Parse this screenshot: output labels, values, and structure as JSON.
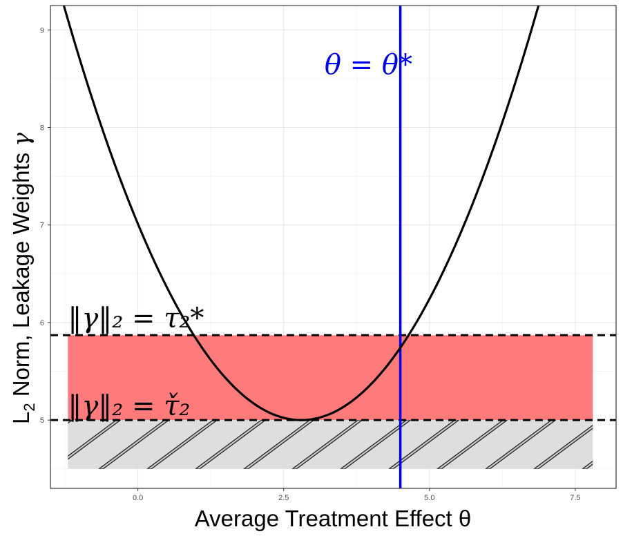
{
  "chart_data": {
    "type": "line",
    "title": "",
    "xlabel": "Average Treatment Effect θ",
    "ylabel": "L₂ Norm, Leakage Weights γ",
    "ylabel_parts": {
      "prefix": "L",
      "subscript": "2",
      "suffix": " Norm, Leakage Weights ",
      "symbol": "γ"
    },
    "xlim": [
      -1.5,
      8.2
    ],
    "ylim": [
      4.3,
      9.25
    ],
    "x_ticks": [
      0.0,
      2.5,
      5.0,
      7.5
    ],
    "x_tick_labels": [
      "0.0",
      "2.5",
      "5.0",
      "7.5"
    ],
    "y_ticks": [
      5,
      6,
      7,
      8,
      9
    ],
    "y_tick_labels": [
      "5",
      "6",
      "7",
      "8",
      "9"
    ],
    "grid": true,
    "series": [
      {
        "name": "L2 norm curve",
        "color": "#000000",
        "function": {
          "kind": "quadratic",
          "vertex_x": 2.8,
          "vertex_y": 5.0,
          "a": 0.2566
        },
        "x_range": [
          -1.3,
          7.0
        ]
      }
    ],
    "vlines": [
      {
        "x": 4.5,
        "color": "#0000ee",
        "label": "θ = θ*"
      }
    ],
    "hlines": [
      {
        "y": 5.87,
        "style": "dashed",
        "color": "#000000",
        "label": "‖γ‖₂ = τ₂*"
      },
      {
        "y": 5.0,
        "style": "dashed",
        "color": "#000000",
        "label": "‖γ‖₂ = τ̌₂"
      }
    ],
    "bands": [
      {
        "name": "feasible region",
        "x_range": [
          -1.2,
          7.8
        ],
        "y_range": [
          5.0,
          5.87
        ],
        "color": "#ff7b7b"
      },
      {
        "name": "infeasible region",
        "x_range": [
          -1.2,
          7.8
        ],
        "y_range": [
          4.5,
          5.0
        ],
        "color": "#dedede",
        "pattern": "hatched"
      }
    ],
    "annotations": [
      {
        "text": "θ = θ*",
        "x": 3.2,
        "y": 8.55,
        "color": "#0000ee"
      },
      {
        "text": "‖γ‖₂ = τ₂*",
        "x": -1.2,
        "y": 5.95,
        "color": "#000000"
      },
      {
        "text": "‖γ‖₂ = τ̌₂",
        "x": -1.2,
        "y": 5.05,
        "color": "#000000"
      }
    ]
  }
}
